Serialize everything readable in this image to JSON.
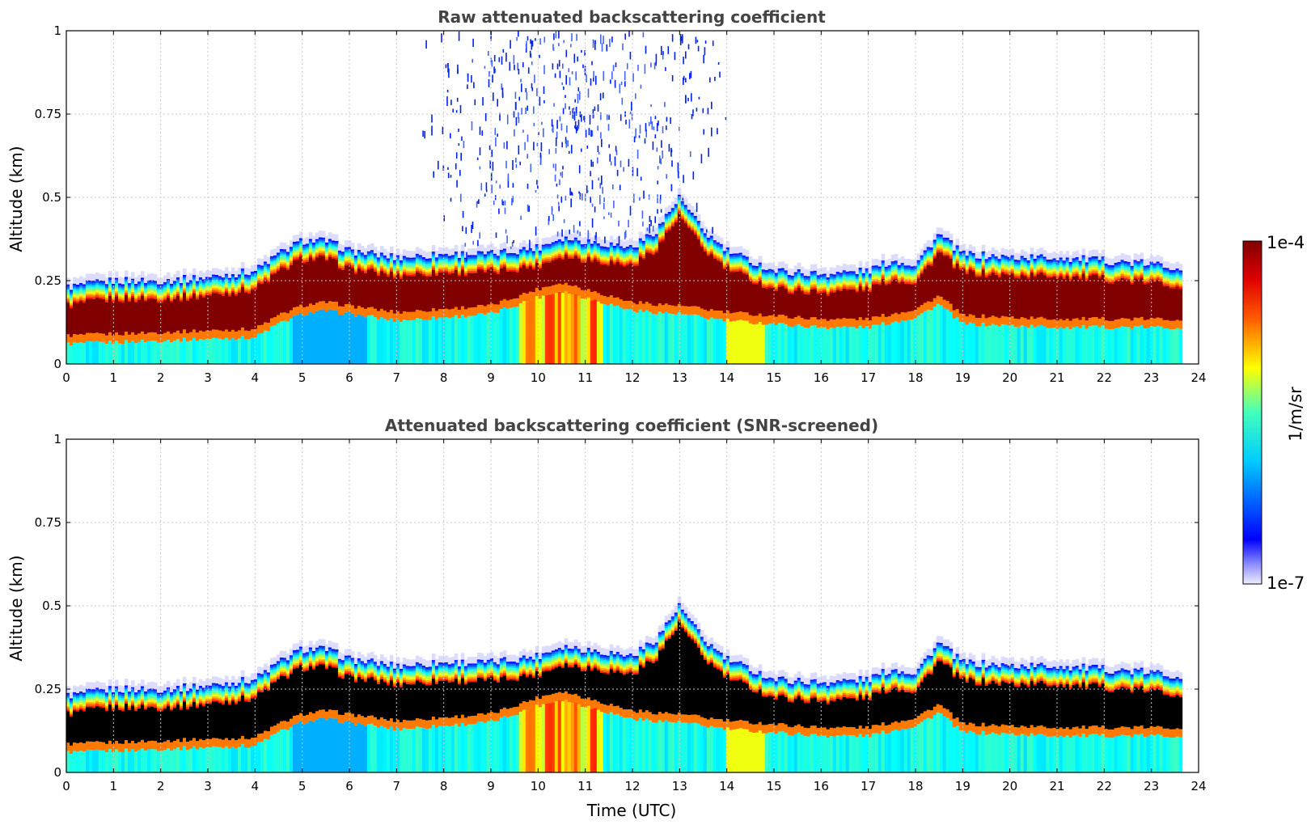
{
  "chart_data": [
    {
      "type": "heatmap",
      "title": "Raw attenuated backscattering coefficient",
      "xlabel": "",
      "ylabel": "Altitude (km)",
      "xlim": [
        0,
        24
      ],
      "ylim": [
        0,
        1
      ],
      "xticks": [
        "0",
        "1",
        "2",
        "3",
        "4",
        "5",
        "6",
        "7",
        "8",
        "9",
        "10",
        "11",
        "12",
        "13",
        "14",
        "15",
        "16",
        "17",
        "18",
        "19",
        "20",
        "21",
        "22",
        "23",
        "24"
      ],
      "yticks": [
        "0",
        "0.25",
        "0.5",
        "0.75",
        "1"
      ],
      "grid": true,
      "data_end_hour": 23.65,
      "layer_top_km_by_hour": [
        [
          0,
          0.23
        ],
        [
          1,
          0.25
        ],
        [
          2,
          0.25
        ],
        [
          3,
          0.26
        ],
        [
          4,
          0.28
        ],
        [
          4.5,
          0.33
        ],
        [
          5,
          0.37
        ],
        [
          5.5,
          0.37
        ],
        [
          6,
          0.34
        ],
        [
          7,
          0.32
        ],
        [
          8,
          0.33
        ],
        [
          9,
          0.33
        ],
        [
          10,
          0.35
        ],
        [
          10.5,
          0.38
        ],
        [
          11,
          0.37
        ],
        [
          12,
          0.35
        ],
        [
          12.5,
          0.4
        ],
        [
          13,
          0.5
        ],
        [
          13.5,
          0.4
        ],
        [
          14,
          0.34
        ],
        [
          14.5,
          0.31
        ],
        [
          15,
          0.28
        ],
        [
          16,
          0.27
        ],
        [
          17,
          0.28
        ],
        [
          17.5,
          0.31
        ],
        [
          18,
          0.3
        ],
        [
          18.5,
          0.39
        ],
        [
          19,
          0.33
        ],
        [
          20,
          0.32
        ],
        [
          21,
          0.32
        ],
        [
          22,
          0.31
        ],
        [
          23,
          0.3
        ],
        [
          23.65,
          0.29
        ]
      ],
      "aerosol_top_km_by_hour": [
        [
          0,
          0.06
        ],
        [
          2,
          0.07
        ],
        [
          4,
          0.08
        ],
        [
          4.5,
          0.12
        ],
        [
          5,
          0.15
        ],
        [
          5.5,
          0.16
        ],
        [
          6,
          0.15
        ],
        [
          7,
          0.13
        ],
        [
          8,
          0.14
        ],
        [
          9,
          0.15
        ],
        [
          10,
          0.2
        ],
        [
          10.5,
          0.22
        ],
        [
          11,
          0.2
        ],
        [
          12,
          0.16
        ],
        [
          13,
          0.15
        ],
        [
          14,
          0.13
        ],
        [
          15,
          0.12
        ],
        [
          16,
          0.11
        ],
        [
          17,
          0.11
        ],
        [
          18,
          0.14
        ],
        [
          18.5,
          0.18
        ],
        [
          19,
          0.12
        ],
        [
          21,
          0.11
        ],
        [
          23.65,
          0.11
        ]
      ],
      "noise_hours": [
        7.5,
        14.0
      ]
    },
    {
      "type": "heatmap",
      "title": "Attenuated backscattering coefficient (SNR-screened)",
      "xlabel": "Time (UTC)",
      "ylabel": "Altitude (km)",
      "xlim": [
        0,
        24
      ],
      "ylim": [
        0,
        1
      ],
      "xticks": [
        "0",
        "1",
        "2",
        "3",
        "4",
        "5",
        "6",
        "7",
        "8",
        "9",
        "10",
        "11",
        "12",
        "13",
        "14",
        "15",
        "16",
        "17",
        "18",
        "19",
        "20",
        "21",
        "22",
        "23",
        "24"
      ],
      "yticks": [
        "0",
        "0.25",
        "0.5",
        "0.75",
        "1"
      ],
      "grid": true,
      "saturated_color": "#000000",
      "data_end_hour": 23.65
    }
  ],
  "colorbar": {
    "label": "1/m/sr",
    "max_label": "1e-4",
    "min_label": "1e-7",
    "colormap": "jet",
    "scale": "log"
  },
  "colors": {
    "title": "#444444",
    "grid": "#c8c8c8",
    "saturated_dark_red": "#800000"
  }
}
